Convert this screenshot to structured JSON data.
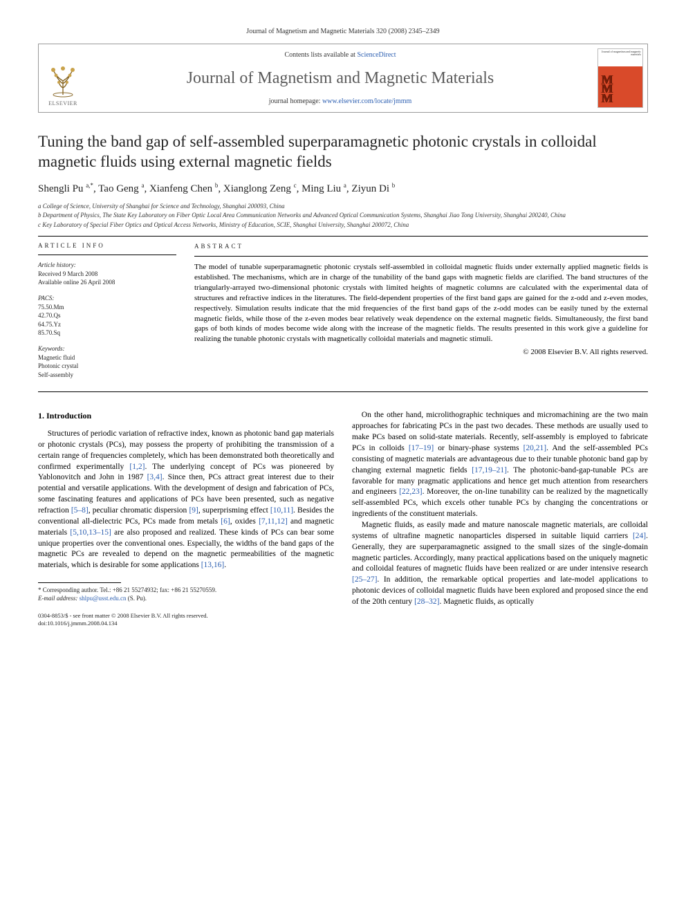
{
  "running_head": "Journal of Magnetism and Magnetic Materials 320 (2008) 2345–2349",
  "header": {
    "contents_prefix": "Contents lists available at ",
    "contents_link": "ScienceDirect",
    "journal_name": "Journal of Magnetism and Magnetic Materials",
    "homepage_prefix": "journal homepage: ",
    "homepage_link": "www.elsevier.com/locate/jmmm",
    "publisher": "ELSEVIER",
    "cover_top": "Journal of magnetism and magnetic materials",
    "cover_mmm": "MMM"
  },
  "title": "Tuning the band gap of self-assembled superparamagnetic photonic crystals in colloidal magnetic fluids using external magnetic fields",
  "authors_html": "Shengli Pu <sup>a,*</sup>, Tao Geng <sup>a</sup>, Xianfeng Chen <sup>b</sup>, Xianglong Zeng <sup>c</sup>, Ming Liu <sup>a</sup>, Ziyun Di <sup>b</sup>",
  "affiliations": [
    "a College of Science, University of Shanghai for Science and Technology, Shanghai 200093, China",
    "b Department of Physics, The State Key Laboratory on Fiber Optic Local Area Communication Networks and Advanced Optical Communication Systems, Shanghai Jiao Tong University, Shanghai 200240, China",
    "c Key Laboratory of Special Fiber Optics and Optical Access Networks, Ministry of Education, SCIE, Shanghai University, Shanghai 200072, China"
  ],
  "meta": {
    "info_head": "ARTICLE INFO",
    "history_label": "Article history:",
    "history_lines": [
      "Received 9 March 2008",
      "Available online 26 April 2008"
    ],
    "pacs_label": "PACS:",
    "pacs": [
      "75.50.Mm",
      "42.70.Qs",
      "64.75.Yz",
      "85.70.Sq"
    ],
    "keywords_label": "Keywords:",
    "keywords": [
      "Magnetic fluid",
      "Photonic crystal",
      "Self-assembly"
    ]
  },
  "abstract": {
    "head": "ABSTRACT",
    "text": "The model of tunable superparamagnetic photonic crystals self-assembled in colloidal magnetic fluids under externally applied magnetic fields is established. The mechanisms, which are in charge of the tunability of the band gaps with magnetic fields are clarified. The band structures of the triangularly-arrayed two-dimensional photonic crystals with limited heights of magnetic columns are calculated with the experimental data of structures and refractive indices in the literatures. The field-dependent properties of the first band gaps are gained for the z-odd and z-even modes, respectively. Simulation results indicate that the mid frequencies of the first band gaps of the z-odd modes can be easily tuned by the external magnetic fields, while those of the z-even modes bear relatively weak dependence on the external magnetic fields. Simultaneously, the first band gaps of both kinds of modes become wide along with the increase of the magnetic fields. The results presented in this work give a guideline for realizing the tunable photonic crystals with magnetically colloidal materials and magnetic stimuli.",
    "copyright": "© 2008 Elsevier B.V. All rights reserved."
  },
  "section1_head": "1. Introduction",
  "para1": "Structures of periodic variation of refractive index, known as photonic band gap materials or photonic crystals (PCs), may possess the property of prohibiting the transmission of a certain range of frequencies completely, which has been demonstrated both theoretically and confirmed experimentally [1,2]. The underlying concept of PCs was pioneered by Yablonovitch and John in 1987 [3,4]. Since then, PCs attract great interest due to their potential and versatile applications. With the development of design and fabrication of PCs, some fascinating features and applications of PCs have been presented, such as negative refraction [5–8], peculiar chromatic dispersion [9], superprisming effect [10,11]. Besides the conventional all-dielectric PCs, PCs made from metals [6], oxides [7,11,12] and magnetic materials [5,10,13–15] are also proposed and realized. These kinds of PCs can bear some unique properties over the conventional ones. Especially, the widths of the band gaps of the magnetic PCs are revealed to depend on the magnetic permeabilities of the magnetic materials, which is desirable for some applications [13,16].",
  "para2": "On the other hand, microlithographic techniques and micromachining are the two main approaches for fabricating PCs in the past two decades. These methods are usually used to make PCs based on solid-state materials. Recently, self-assembly is employed to fabricate PCs in colloids [17–19] or binary-phase systems [20,21]. And the self-assembled PCs consisting of magnetic materials are advantageous due to their tunable photonic band gap by changing external magnetic fields [17,19–21]. The photonic-band-gap-tunable PCs are favorable for many pragmatic applications and hence get much attention from researchers and engineers [22,23]. Moreover, the on-line tunability can be realized by the magnetically self-assembled PCs, which excels other tunable PCs by changing the concentrations or ingredients of the constituent materials.",
  "para3": "Magnetic fluids, as easily made and mature nanoscale magnetic materials, are colloidal systems of ultrafine magnetic nanoparticles dispersed in suitable liquid carriers [24]. Generally, they are superparamagnetic assigned to the small sizes of the single-domain magnetic particles. Accordingly, many practical applications based on the uniquely magnetic and colloidal features of magnetic fluids have been realized or are under intensive research [25–27]. In addition, the remarkable optical properties and late-model applications to photonic devices of colloidal magnetic fluids have been explored and proposed since the end of the 20th century [28–32]. Magnetic fluids, as optically",
  "footnote": {
    "corr": "* Corresponding author. Tel.: +86 21 55274932; fax: +86 21 55270559.",
    "email_label": "E-mail address: ",
    "email": "shlpu@usst.edu.cn",
    "email_tail": " (S. Pu)."
  },
  "bottom": {
    "line1": "0304-8853/$ - see front matter © 2008 Elsevier B.V. All rights reserved.",
    "line2": "doi:10.1016/j.jmmm.2008.04.134"
  },
  "colors": {
    "link": "#2a5db0",
    "text": "#000000",
    "journal_grey": "#5a5a5a",
    "cover_orange": "#d94a2a"
  }
}
